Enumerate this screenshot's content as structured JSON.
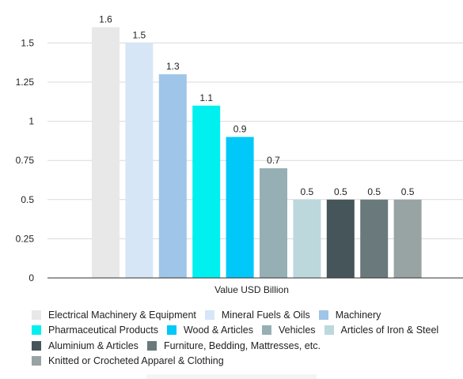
{
  "chart_data": {
    "type": "bar",
    "title": "",
    "xlabel": "Value USD Billion",
    "ylabel": "",
    "ylim": [
      0,
      1.7
    ],
    "yticks": [
      "0",
      "0.25",
      "0.5",
      "0.75",
      "1",
      "1.25",
      "1.5"
    ],
    "grid": "horizontal",
    "legend_position": "bottom",
    "series": [
      {
        "name": "Electrical Machinery & Equipment",
        "value": 1.6,
        "label": "1.6",
        "color": "#e8e8e8"
      },
      {
        "name": "Mineral Fuels & Oils",
        "value": 1.5,
        "label": "1.5",
        "color": "#d6e6f7"
      },
      {
        "name": "Machinery",
        "value": 1.3,
        "label": "1.3",
        "color": "#9fc5e8"
      },
      {
        "name": "Pharmaceutical Products",
        "value": 1.1,
        "label": "1.1",
        "color": "#00f0f0"
      },
      {
        "name": "Wood & Articles",
        "value": 0.9,
        "label": "0.9",
        "color": "#00c8f8"
      },
      {
        "name": "Vehicles",
        "value": 0.7,
        "label": "0.7",
        "color": "#96afb4"
      },
      {
        "name": "Articles of Iron & Steel",
        "value": 0.5,
        "label": "0.5",
        "color": "#bcd8dc"
      },
      {
        "name": "Aluminium & Articles",
        "value": 0.5,
        "label": "0.5",
        "color": "#465559"
      },
      {
        "name": "Furniture, Bedding, Mattresses, etc.",
        "value": 0.5,
        "label": "0.5",
        "color": "#6a797b"
      },
      {
        "name": "Knitted or Crocheted Apparel & Clothing",
        "value": 0.5,
        "label": "0.5",
        "color": "#98a3a4"
      }
    ]
  }
}
